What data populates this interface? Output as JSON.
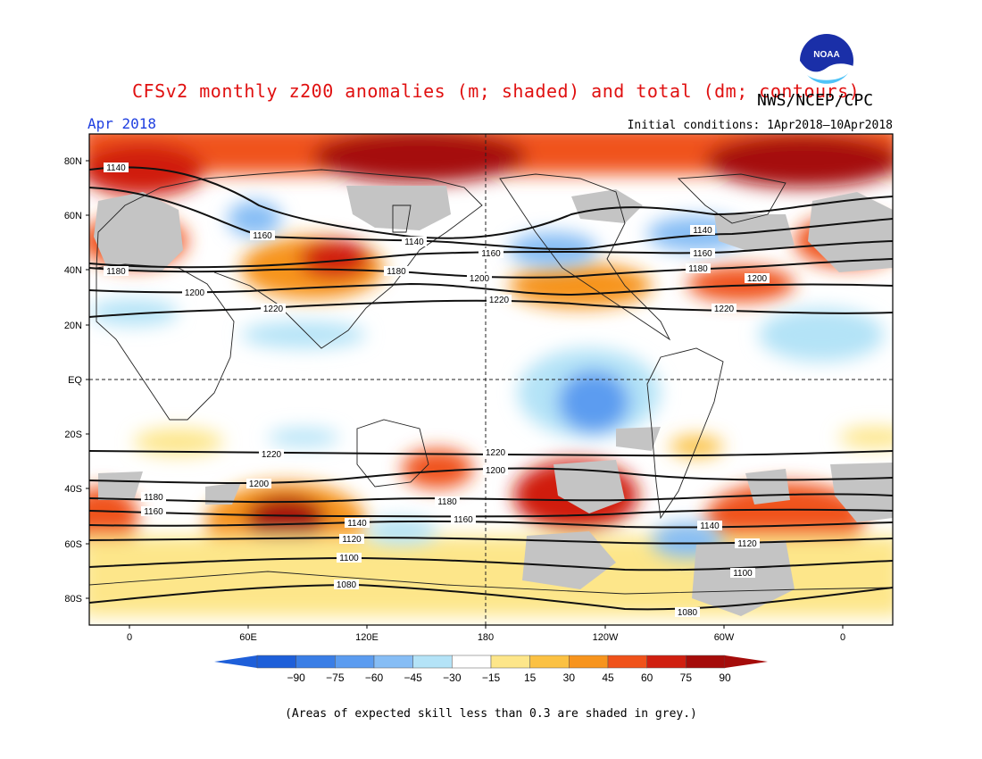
{
  "header": {
    "title": "CFSv2 monthly z200 anomalies (m; shaded) and total (dm; contours)",
    "agency": "NWS/NCEP/CPC",
    "period": "Apr 2018",
    "initial_conditions": "Initial conditions: 1Apr2018–10Apr2018"
  },
  "logo": {
    "text": "NOAA",
    "icon": "noaa-logo-icon"
  },
  "map": {
    "projection": "equirectangular",
    "lat_labels": [
      "80N",
      "60N",
      "40N",
      "20N",
      "EQ",
      "20S",
      "40S",
      "60S",
      "80S"
    ],
    "lon_labels": [
      "0",
      "60E",
      "120E",
      "180",
      "120W",
      "60W",
      "0"
    ],
    "grid": "dashed-equator-and-dateline"
  },
  "contours": {
    "units": "dm",
    "labels": [
      "1140",
      "1160",
      "1180",
      "1200",
      "1220",
      "1140",
      "1160",
      "1180",
      "1200",
      "1220",
      "1140",
      "1160",
      "1180",
      "1200",
      "1220",
      "1220",
      "1200",
      "1180",
      "1160",
      "1140",
      "1120",
      "1100",
      "1080",
      "1220",
      "1200",
      "1180",
      "1160",
      "1140",
      "1120",
      "1100",
      "1080"
    ]
  },
  "colorbar": {
    "tick_labels": [
      "−90",
      "−75",
      "−60",
      "−45",
      "−30",
      "−15",
      "15",
      "30",
      "45",
      "60",
      "75",
      "90"
    ],
    "colors": [
      "#1e5fd9",
      "#3a7ee6",
      "#5b9cf0",
      "#86bdf5",
      "#b4e3f7",
      "#ffffff",
      "#fde68a",
      "#fbc143",
      "#f7941d",
      "#f0521a",
      "#d01f10",
      "#a50c0a"
    ],
    "low_end_color": "#1e5fd9",
    "high_end_color": "#a50c0a"
  },
  "skill_mask_color": "#c4c4c4",
  "footnote": "(Areas of expected skill less than 0.3 are shaded in grey.)"
}
